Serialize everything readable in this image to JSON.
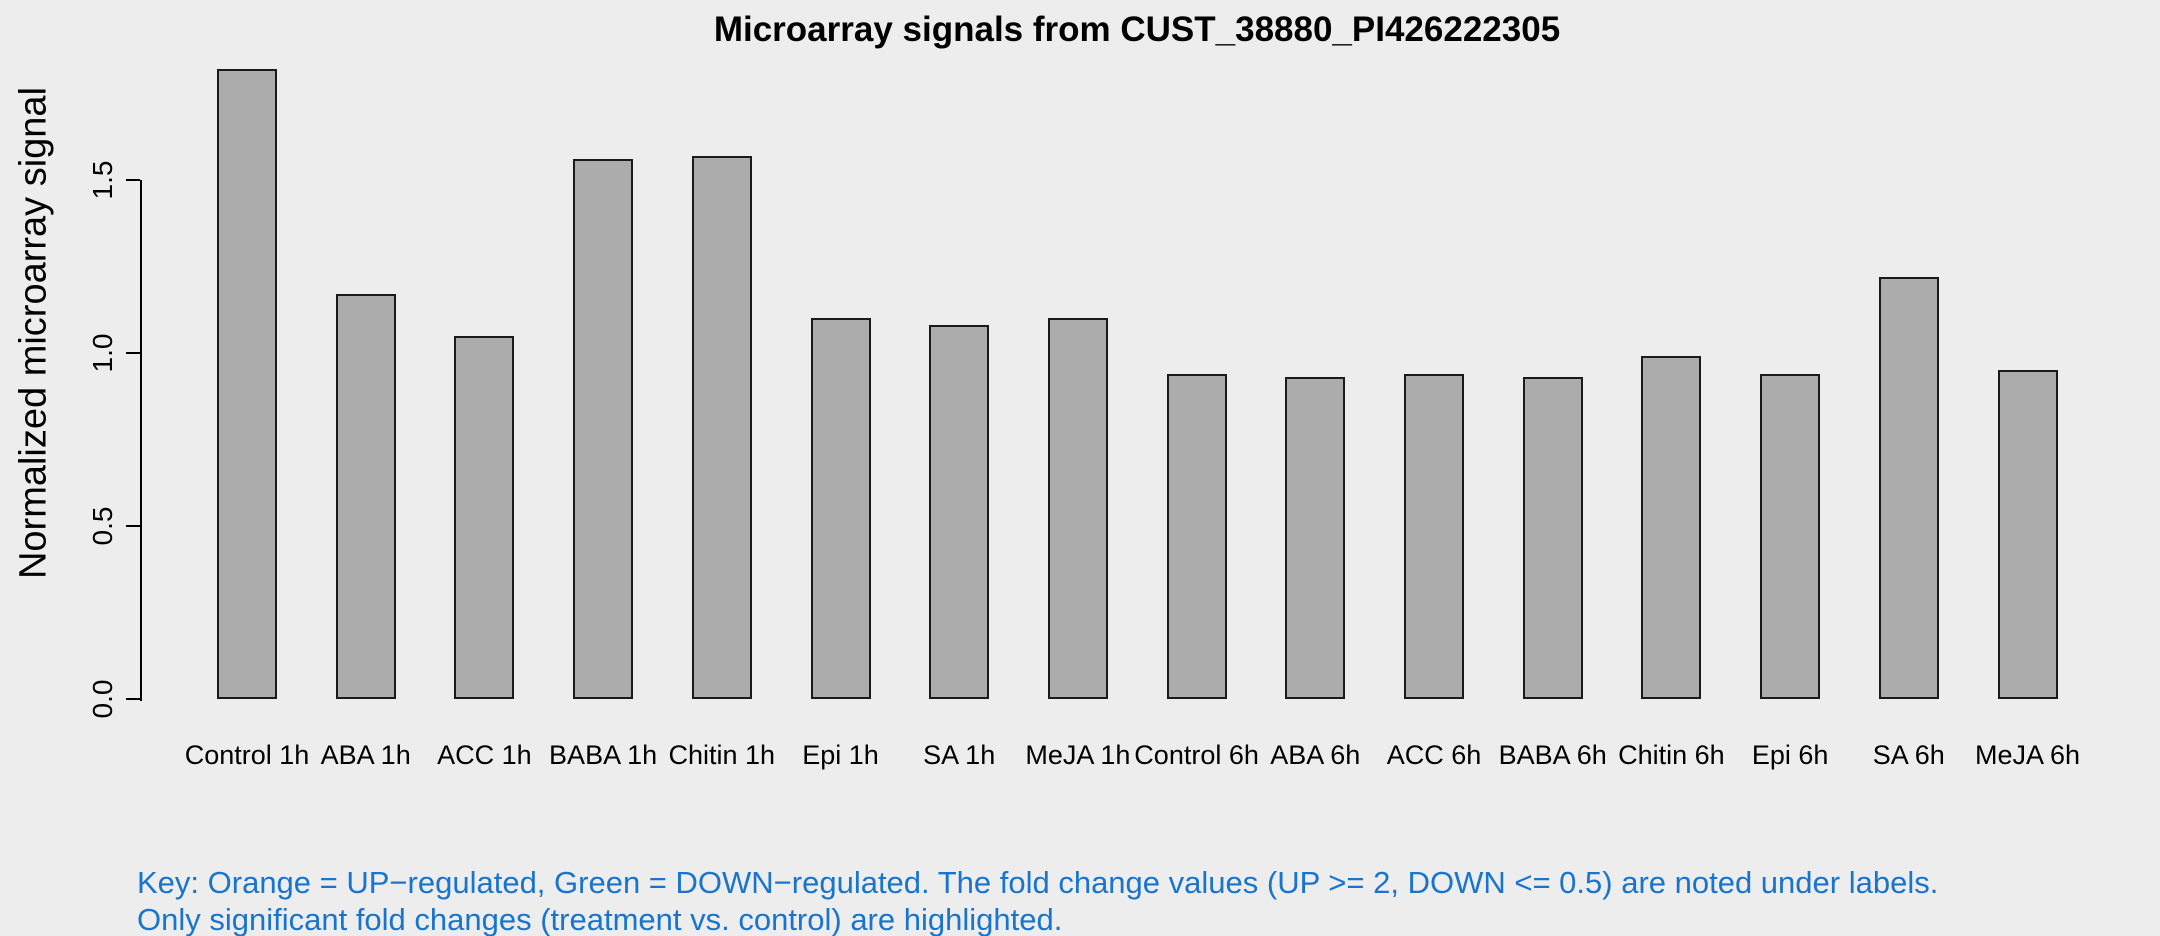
{
  "page": {
    "background": "#EDEDED"
  },
  "chart_data": {
    "type": "bar",
    "title": "Microarray signals from CUST_38880_PI426222305",
    "xlabel": "",
    "ylabel": "Normalized microarray signal",
    "categories": [
      "Control 1h",
      "ABA 1h",
      "ACC 1h",
      "BABA 1h",
      "Chitin 1h",
      "Epi 1h",
      "SA 1h",
      "MeJA 1h",
      "Control 6h",
      "ABA 6h",
      "ACC 6h",
      "BABA 6h",
      "Chitin 6h",
      "Epi 6h",
      "SA 6h",
      "MeJA 6h"
    ],
    "values": [
      1.82,
      1.17,
      1.05,
      1.56,
      1.57,
      1.1,
      1.08,
      1.1,
      0.94,
      0.93,
      0.94,
      0.93,
      0.99,
      0.94,
      1.22,
      0.95
    ],
    "yticks": [
      0.0,
      0.5,
      1.0,
      1.5
    ],
    "ylim": [
      0,
      1.85
    ],
    "grid": false,
    "legend": "none",
    "bar_fill": "#ACACAC",
    "bar_border": "#1a1a1a"
  },
  "key": {
    "line1": "Key: Orange = UP−regulated, Green = DOWN−regulated. The fold change values (UP >= 2, DOWN <= 0.5) are noted under labels.",
    "line2": "Only significant fold changes (treatment vs. control) are highlighted.",
    "color": "#1874CD"
  }
}
